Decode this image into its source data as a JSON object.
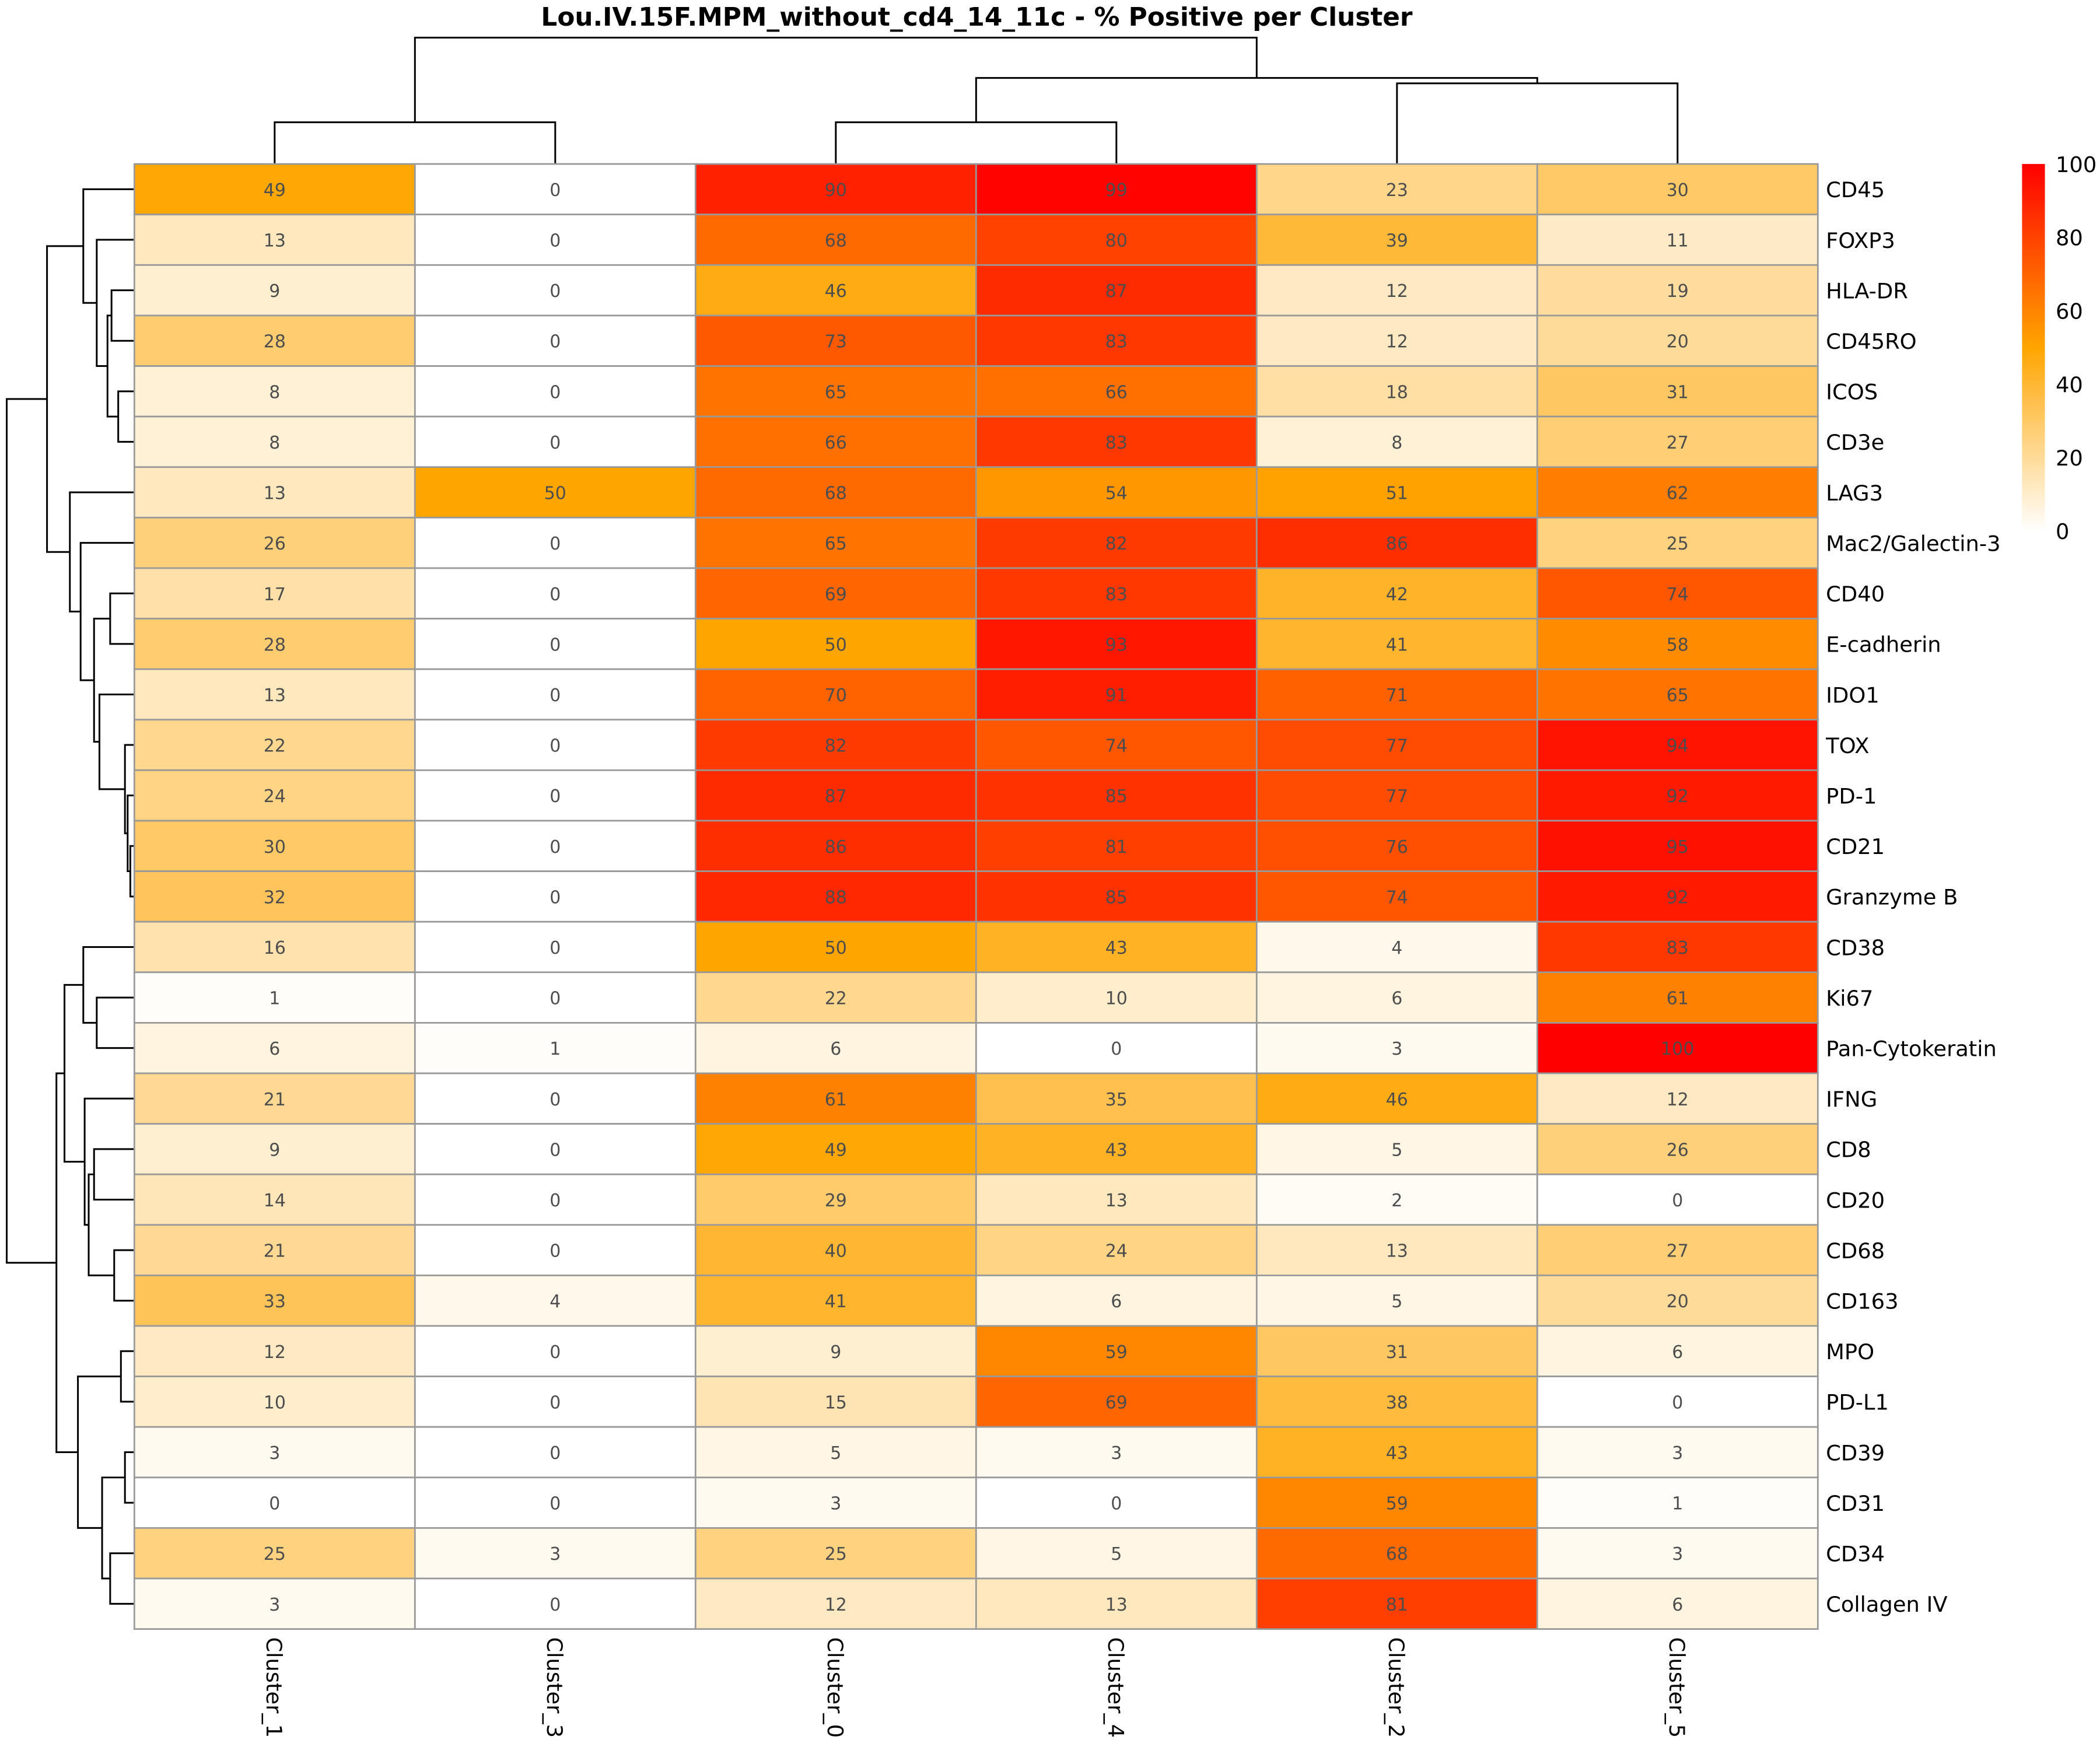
{
  "chart_data": {
    "type": "heatmap",
    "title": "Lou.IV.15F.MPM_without_cd4_14_11c - % Positive per Cluster",
    "columns": [
      "Cluster_1",
      "Cluster_3",
      "Cluster_0",
      "Cluster_4",
      "Cluster_2",
      "Cluster_5"
    ],
    "rows": [
      "CD45",
      "FOXP3",
      "HLA-DR",
      "CD45RO",
      "ICOS",
      "CD3e",
      "LAG3",
      "Mac2/Galectin-3",
      "CD40",
      "E-cadherin",
      "IDO1",
      "TOX",
      "PD-1",
      "CD21",
      "Granzyme B",
      "CD38",
      "Ki67",
      "Pan-Cytokeratin",
      "IFNG",
      "CD8",
      "CD20",
      "CD68",
      "CD163",
      "MPO",
      "PD-L1",
      "CD39",
      "CD31",
      "CD34",
      "Collagen IV"
    ],
    "values": [
      [
        49,
        0,
        90,
        99,
        23,
        30
      ],
      [
        13,
        0,
        68,
        80,
        39,
        11
      ],
      [
        9,
        0,
        46,
        87,
        12,
        19
      ],
      [
        28,
        0,
        73,
        83,
        12,
        20
      ],
      [
        8,
        0,
        65,
        66,
        18,
        31
      ],
      [
        8,
        0,
        66,
        83,
        8,
        27
      ],
      [
        13,
        50,
        68,
        54,
        51,
        62
      ],
      [
        26,
        0,
        65,
        82,
        86,
        25
      ],
      [
        17,
        0,
        69,
        83,
        42,
        74
      ],
      [
        28,
        0,
        50,
        93,
        41,
        58
      ],
      [
        13,
        0,
        70,
        91,
        71,
        65
      ],
      [
        22,
        0,
        82,
        74,
        77,
        94
      ],
      [
        24,
        0,
        87,
        85,
        77,
        92
      ],
      [
        30,
        0,
        86,
        81,
        76,
        95
      ],
      [
        32,
        0,
        88,
        85,
        74,
        92
      ],
      [
        16,
        0,
        50,
        43,
        4,
        83
      ],
      [
        1,
        0,
        22,
        10,
        6,
        61
      ],
      [
        6,
        1,
        6,
        0,
        3,
        100
      ],
      [
        21,
        0,
        61,
        35,
        46,
        12
      ],
      [
        9,
        0,
        49,
        43,
        5,
        26
      ],
      [
        14,
        0,
        29,
        13,
        2,
        0
      ],
      [
        21,
        0,
        40,
        24,
        13,
        27
      ],
      [
        33,
        4,
        41,
        6,
        5,
        20
      ],
      [
        12,
        0,
        9,
        59,
        31,
        6
      ],
      [
        10,
        0,
        15,
        69,
        38,
        0
      ],
      [
        3,
        0,
        5,
        3,
        43,
        3
      ],
      [
        0,
        0,
        3,
        0,
        59,
        1
      ],
      [
        25,
        3,
        25,
        5,
        68,
        3
      ],
      [
        3,
        0,
        12,
        13,
        81,
        6
      ]
    ],
    "color_scale": {
      "min": 0,
      "max": 100,
      "colors": [
        "#ffffff",
        "#ffa500",
        "#ff0000"
      ],
      "ticks": [
        "0",
        "20",
        "40",
        "60",
        "80",
        "100"
      ]
    },
    "legend_placement": "top-right"
  }
}
